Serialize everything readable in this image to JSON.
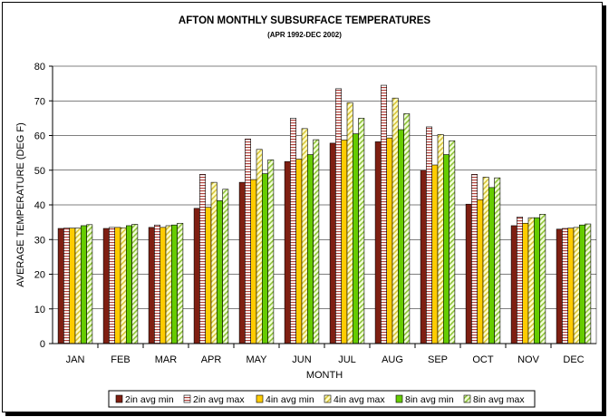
{
  "chart_data": {
    "type": "bar",
    "title": "AFTON  MONTHLY SUBSURFACE TEMPERATURES",
    "subtitle": "(APR 1992-DEC 2002)",
    "xlabel": "MONTH",
    "ylabel": "AVERAGE TEMPERATURE (DEG F)",
    "ylim": [
      0,
      80
    ],
    "yticks": [
      "0",
      "10",
      "20",
      "30",
      "40",
      "50",
      "60",
      "70",
      "80"
    ],
    "grid": true,
    "legend_position": "bottom",
    "categories": [
      "JAN",
      "FEB",
      "MAR",
      "APR",
      "MAY",
      "JUN",
      "JUL",
      "AUG",
      "SEP",
      "OCT",
      "NOV",
      "DEC"
    ],
    "series": [
      {
        "name": "2in avg min",
        "color": "#7f1f12",
        "pattern": "solid",
        "values": [
          33.2,
          33.2,
          33.5,
          39,
          46.5,
          52.5,
          57.8,
          58.2,
          50,
          40.2,
          34,
          33
        ]
      },
      {
        "name": "2in avg max",
        "color": "#c0504d",
        "pattern": "hlines",
        "values": [
          33.3,
          33.5,
          34.2,
          48.8,
          59,
          65,
          73.5,
          74.5,
          62.5,
          48.8,
          36.5,
          33.2
        ]
      },
      {
        "name": "4in avg min",
        "color": "#ffcc00",
        "pattern": "solid",
        "values": [
          33.3,
          33.5,
          33.5,
          39.3,
          47.3,
          53.2,
          58.7,
          59.3,
          51.5,
          41.5,
          34.7,
          33.3
        ]
      },
      {
        "name": "4in avg max",
        "color": "#d7c540",
        "pattern": "diag",
        "values": [
          33.3,
          33.4,
          34,
          46.5,
          56,
          62,
          69.5,
          70.8,
          60.3,
          48,
          36.3,
          33.5
        ]
      },
      {
        "name": "8in avg min",
        "color": "#66cc00",
        "pattern": "solid",
        "values": [
          34,
          34,
          34.2,
          41.2,
          49,
          54.5,
          60.5,
          61.7,
          54.5,
          45,
          36.3,
          34.2
        ]
      },
      {
        "name": "8in avg max",
        "color": "#99cc33",
        "pattern": "diag",
        "values": [
          34.3,
          34.4,
          34.7,
          44.5,
          53,
          58.8,
          65,
          66.3,
          58.5,
          47.8,
          37.3,
          34.5
        ]
      }
    ]
  }
}
